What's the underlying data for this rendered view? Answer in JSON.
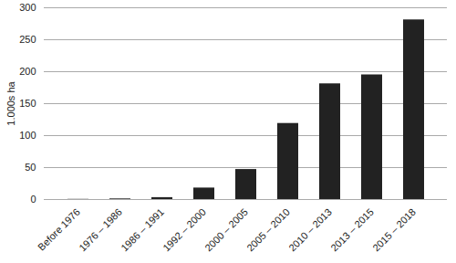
{
  "chart_data": {
    "type": "bar",
    "y_label": "1.000s ha",
    "categories": [
      "Before 1976",
      "1976 – 1986",
      "1986 – 1991",
      "1992 – 2000",
      "2000 – 2005",
      "2005 – 2010",
      "2010 – 2013",
      "2013 – 2015",
      "2015 – 2018"
    ],
    "values": [
      0.3,
      1,
      3,
      18,
      47,
      119,
      181,
      195,
      281
    ],
    "color": "#222222",
    "ylim": [
      0,
      300
    ],
    "yticks": [
      0,
      50,
      100,
      150,
      200,
      250,
      300
    ],
    "grid": true
  }
}
